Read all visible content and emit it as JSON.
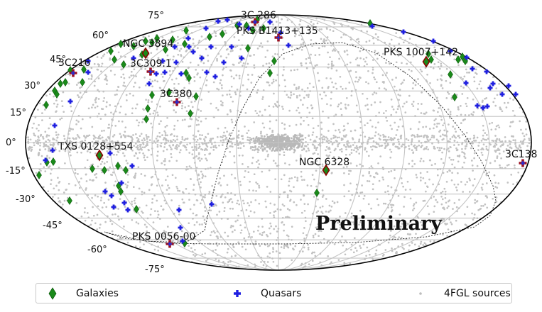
{
  "chart_data": {
    "type": "scatter",
    "projection": "Mollweide (all-sky)",
    "grid": true,
    "latitude_tick_labels": [
      "75°",
      "60°",
      "45°",
      "30°",
      "15°",
      "0°",
      "-15°",
      "-30°",
      "-45°",
      "-60°",
      "-75°"
    ],
    "series": [
      {
        "name": "Galaxies",
        "marker": "diamond",
        "color": "#1a8a1a"
      },
      {
        "name": "Quasars",
        "marker": "plus",
        "color": "#1f1fe0"
      },
      {
        "name": "4FGL sources",
        "marker": "dot",
        "color": "#bdbdbd"
      }
    ],
    "highlighted_sources": [
      {
        "name": "3C 286",
        "type": "quasar"
      },
      {
        "name": "PKS B1413+135",
        "type": "quasar"
      },
      {
        "name": "NGC 3894",
        "type": "galaxy"
      },
      {
        "name": "PKS 1007+142",
        "type": "galaxy"
      },
      {
        "name": "3C216",
        "type": "quasar"
      },
      {
        "name": "3C309.1",
        "type": "quasar"
      },
      {
        "name": "3C380",
        "type": "quasar"
      },
      {
        "name": "TXS 0128+554",
        "type": "galaxy"
      },
      {
        "name": "NGC 6328",
        "type": "galaxy"
      },
      {
        "name": "3C138",
        "type": "quasar"
      },
      {
        "name": "PKS 0056-00",
        "type": "quasar"
      }
    ],
    "watermark": "Preliminary",
    "legend_position": "bottom"
  }
}
